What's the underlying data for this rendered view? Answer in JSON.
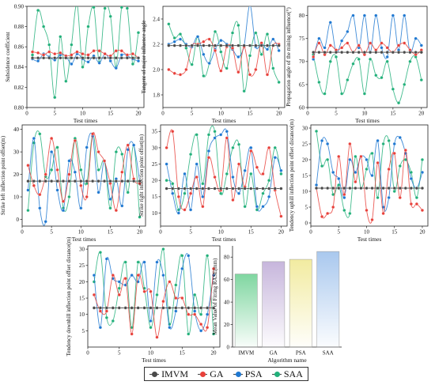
{
  "legend": {
    "items": [
      {
        "label": "IMVM",
        "color": "#4a4a4a"
      },
      {
        "label": "GA",
        "color": "#e8403a"
      },
      {
        "label": "PSA",
        "color": "#1f78d1"
      },
      {
        "label": "SAA",
        "color": "#22b07a"
      }
    ]
  },
  "chart_data": [
    {
      "type": "line",
      "xlabel": "Test times",
      "ylabel": "Subsidence coefficient",
      "xlim": [
        0,
        21
      ],
      "ylim": [
        0.8,
        0.9
      ],
      "xticks": [
        0,
        5,
        10,
        15,
        20
      ],
      "yticks": [
        0.8,
        0.82,
        0.84,
        0.86,
        0.88,
        0.9
      ],
      "x": [
        1,
        2,
        3,
        4,
        5,
        6,
        7,
        8,
        9,
        10,
        11,
        12,
        13,
        14,
        15,
        16,
        17,
        18,
        19,
        20
      ],
      "series": [
        {
          "name": "IMVM",
          "values": [
            0.849,
            0.849,
            0.849,
            0.849,
            0.849,
            0.849,
            0.849,
            0.849,
            0.849,
            0.849,
            0.849,
            0.849,
            0.849,
            0.849,
            0.849,
            0.849,
            0.849,
            0.849,
            0.849,
            0.849
          ]
        },
        {
          "name": "GA",
          "values": [
            0.855,
            0.854,
            0.852,
            0.855,
            0.853,
            0.854,
            0.851,
            0.852,
            0.855,
            0.853,
            0.852,
            0.856,
            0.856,
            0.853,
            0.851,
            0.856,
            0.856,
            0.852,
            0.853,
            0.849
          ]
        },
        {
          "name": "PSA",
          "values": [
            0.848,
            0.846,
            0.853,
            0.85,
            0.847,
            0.852,
            0.851,
            0.843,
            0.853,
            0.848,
            0.845,
            0.851,
            0.844,
            0.853,
            0.846,
            0.839,
            0.852,
            0.851,
            0.848,
            0.846
          ]
        },
        {
          "name": "SAA",
          "values": [
            0.852,
            0.896,
            0.88,
            0.862,
            0.81,
            0.87,
            0.826,
            0.862,
            0.902,
            0.84,
            0.88,
            0.899,
            0.845,
            0.898,
            0.89,
            0.84,
            0.899,
            0.898,
            0.843,
            0.874
          ]
        }
      ]
    },
    {
      "type": "line",
      "xlabel": "Test times",
      "ylabel": "Tangent of major influence angle",
      "xlim": [
        0,
        21
      ],
      "ylim": [
        1.7,
        2.5
      ],
      "xticks": [
        0,
        5,
        10,
        15,
        20
      ],
      "yticks": [
        1.8,
        2.0,
        2.2,
        2.4
      ],
      "x": [
        1,
        2,
        3,
        4,
        5,
        6,
        7,
        8,
        9,
        10,
        11,
        12,
        13,
        14,
        15,
        16,
        17,
        18,
        19,
        20
      ],
      "series": [
        {
          "name": "IMVM",
          "values": [
            2.19,
            2.19,
            2.19,
            2.19,
            2.19,
            2.19,
            2.19,
            2.19,
            2.19,
            2.19,
            2.19,
            2.19,
            2.19,
            2.19,
            2.19,
            2.19,
            2.19,
            2.19,
            2.19,
            2.19
          ]
        },
        {
          "name": "GA",
          "values": [
            2.0,
            1.97,
            1.96,
            2.0,
            2.19,
            2.2,
            2.22,
            2.24,
            2.15,
            1.99,
            2.18,
            2.17,
            1.98,
            2.18,
            1.96,
            2.0,
            2.21,
            1.96,
            2.19,
            2.2
          ]
        },
        {
          "name": "PSA",
          "values": [
            2.2,
            2.22,
            2.24,
            2.2,
            2.18,
            2.26,
            2.12,
            2.05,
            2.16,
            2.23,
            2.2,
            2.16,
            2.1,
            2.19,
            2.51,
            2.18,
            2.21,
            2.16,
            2.24,
            2.15
          ]
        },
        {
          "name": "SAA",
          "values": [
            2.36,
            2.25,
            2.28,
            2.17,
            2.04,
            2.26,
            1.95,
            2.05,
            2.3,
            2.14,
            2.01,
            2.29,
            2.35,
            1.83,
            2.11,
            2.29,
            2.12,
            2.28,
            2.01,
            1.9
          ]
        }
      ]
    },
    {
      "type": "line",
      "xlabel": "Test times",
      "ylabel": "Propagation angle of the mining influence(°)",
      "xlim": [
        0,
        21
      ],
      "ylim": [
        60,
        82
      ],
      "xticks": [
        0,
        5,
        10,
        15,
        20
      ],
      "yticks": [
        60,
        65,
        70,
        75,
        80
      ],
      "x": [
        1,
        2,
        3,
        4,
        5,
        6,
        7,
        8,
        9,
        10,
        11,
        12,
        13,
        14,
        15,
        16,
        17,
        18,
        19,
        20
      ],
      "series": [
        {
          "name": "IMVM",
          "values": [
            72,
            72,
            72,
            72,
            72,
            72,
            72,
            72,
            72,
            72,
            72,
            72,
            72,
            72,
            72,
            72,
            72,
            72,
            72,
            72
          ]
        },
        {
          "name": "GA",
          "values": [
            71.0,
            74.0,
            71.5,
            73.5,
            72.5,
            73.0,
            74.0,
            72.0,
            73.5,
            71.5,
            74.0,
            72.5,
            74.0,
            73.0,
            72.0,
            73.5,
            74.0,
            72.5,
            71.5,
            72.5
          ]
        },
        {
          "name": "PSA",
          "values": [
            70.5,
            75.0,
            73.0,
            78.5,
            72.0,
            74.5,
            76.5,
            80.0,
            73.0,
            80.0,
            72.0,
            80.0,
            73.0,
            71.0,
            80.0,
            72.5,
            80.0,
            72.0,
            75.0,
            73.5
          ]
        },
        {
          "name": "SAA",
          "values": [
            71.5,
            65.5,
            63.0,
            70.0,
            71.0,
            63.0,
            66.0,
            69.5,
            70.5,
            63.0,
            70.5,
            67.0,
            66.5,
            70.0,
            64.0,
            61.0,
            65.0,
            70.0,
            71.0,
            66.0
          ]
        }
      ]
    },
    {
      "type": "line",
      "xlabel": "Test times",
      "ylabel": "Strike left inflection point offset(m)",
      "xlim": [
        0,
        21
      ],
      "ylim": [
        -3,
        42
      ],
      "xticks": [
        0,
        5,
        10,
        15,
        20
      ],
      "yticks": [
        0,
        10,
        20,
        30,
        40
      ],
      "x": [
        1,
        2,
        3,
        4,
        5,
        6,
        7,
        8,
        9,
        10,
        11,
        12,
        13,
        14,
        15,
        16,
        17,
        18,
        19,
        20
      ],
      "series": [
        {
          "name": "IMVM",
          "values": [
            17,
            17,
            17,
            17,
            17,
            17,
            17,
            17,
            17,
            17,
            17,
            17,
            17,
            17,
            17,
            17,
            17,
            17,
            17,
            17
          ]
        },
        {
          "name": "GA",
          "values": [
            24,
            15,
            11,
            20,
            36,
            22,
            8,
            20,
            35,
            15,
            10,
            38,
            30,
            26,
            16,
            4,
            21,
            33,
            18,
            16
          ]
        },
        {
          "name": "PSA",
          "values": [
            13,
            36,
            5,
            -1,
            30,
            13,
            4,
            26,
            21,
            5,
            32,
            37,
            12,
            26,
            9,
            18,
            6,
            31,
            33,
            17
          ]
        },
        {
          "name": "SAA",
          "values": [
            4,
            34,
            38,
            19,
            22,
            32,
            5,
            10,
            36,
            22,
            16,
            38,
            22,
            26,
            5,
            30,
            29,
            12,
            33,
            1
          ]
        }
      ]
    },
    {
      "type": "line",
      "xlabel": "Test times",
      "ylabel": "Strike right inflection point offset(m)",
      "xlim": [
        0,
        21
      ],
      "ylim": [
        6,
        37
      ],
      "xticks": [
        0,
        5,
        10,
        15,
        20
      ],
      "yticks": [
        10,
        15,
        20,
        25,
        30,
        35
      ],
      "x": [
        1,
        2,
        3,
        4,
        5,
        6,
        7,
        8,
        9,
        10,
        11,
        12,
        13,
        14,
        15,
        16,
        17,
        18,
        19,
        20
      ],
      "series": [
        {
          "name": "IMVM",
          "values": [
            17.5,
            17.5,
            17.5,
            17.5,
            17.5,
            17.5,
            17.5,
            17.5,
            17.5,
            17.5,
            17.5,
            17.5,
            17.5,
            17.5,
            17.5,
            17.5,
            17.5,
            17.5,
            17.5,
            17.5
          ]
        },
        {
          "name": "GA",
          "values": [
            30,
            35,
            15,
            11,
            16,
            21,
            12,
            27,
            21,
            17,
            33,
            14,
            25,
            18,
            29,
            24,
            22,
            30,
            17,
            9
          ]
        },
        {
          "name": "PSA",
          "values": [
            25,
            16,
            10,
            22,
            11,
            25,
            15,
            29,
            33,
            34,
            35,
            21,
            16,
            23,
            30,
            12,
            12,
            15,
            27,
            23
          ]
        },
        {
          "name": "SAA",
          "values": [
            20,
            19,
            11,
            16,
            28,
            34,
            19,
            34,
            35,
            16,
            22,
            30,
            31,
            12,
            22,
            11,
            16,
            20,
            30,
            22
          ]
        }
      ]
    },
    {
      "type": "line",
      "xlabel": "Test times",
      "ylabel": "Tendency uphill inflection point offset distance(m)",
      "xlim": [
        0,
        21
      ],
      "ylim": [
        -1,
        31
      ],
      "xticks": [
        0,
        5,
        10,
        15,
        20
      ],
      "yticks": [
        0,
        5,
        10,
        15,
        20,
        25,
        30
      ],
      "x": [
        1,
        2,
        3,
        4,
        5,
        6,
        7,
        8,
        9,
        10,
        11,
        12,
        13,
        14,
        15,
        16,
        17,
        18,
        19,
        20
      ],
      "series": [
        {
          "name": "IMVM",
          "values": [
            11,
            11,
            11,
            11,
            11,
            11,
            11,
            11,
            11,
            11,
            11,
            11,
            11,
            11,
            11,
            11,
            11,
            11,
            11,
            11
          ]
        },
        {
          "name": "GA",
          "values": [
            11,
            2,
            3,
            5,
            21,
            9,
            25,
            13,
            21,
            4,
            1,
            19,
            3,
            17,
            22,
            8,
            23,
            6,
            6,
            4
          ]
        },
        {
          "name": "PSA",
          "values": [
            12,
            26,
            25,
            16,
            14,
            8,
            20,
            16,
            21,
            20,
            15,
            26,
            5,
            8,
            25,
            27,
            22,
            14,
            11,
            16
          ]
        },
        {
          "name": "SAA",
          "values": [
            29,
            18,
            20,
            9,
            12,
            4,
            3,
            21,
            11,
            17,
            22,
            8,
            25,
            26,
            10,
            18,
            20,
            16,
            8,
            20
          ]
        }
      ]
    },
    {
      "type": "line",
      "xlabel": "Test times",
      "ylabel": "Tendency downhill inflection point offset distance(m)",
      "xlim": [
        0,
        21
      ],
      "ylim": [
        0,
        31
      ],
      "xticks": [
        0,
        5,
        10,
        15,
        20
      ],
      "yticks": [
        5,
        10,
        15,
        20,
        25,
        30
      ],
      "x": [
        1,
        2,
        3,
        4,
        5,
        6,
        7,
        8,
        9,
        10,
        11,
        12,
        13,
        14,
        15,
        16,
        17,
        18,
        19,
        20
      ],
      "series": [
        {
          "name": "IMVM",
          "values": [
            12,
            12,
            12,
            12,
            12,
            12,
            12,
            12,
            12,
            12,
            12,
            12,
            12,
            12,
            12,
            12,
            12,
            12,
            12,
            12
          ]
        },
        {
          "name": "GA",
          "values": [
            16,
            11,
            11,
            22,
            16,
            21,
            4,
            22,
            17,
            17,
            3,
            14,
            20,
            15,
            15,
            10,
            10,
            7,
            6,
            24
          ]
        },
        {
          "name": "PSA",
          "values": [
            22,
            6,
            27,
            21,
            20,
            19,
            22,
            20,
            26,
            8,
            26,
            22,
            6,
            11,
            24,
            28,
            11,
            5,
            10,
            22
          ]
        },
        {
          "name": "SAA",
          "values": [
            20,
            29,
            9,
            8,
            18,
            26,
            6,
            26,
            18,
            6,
            16,
            30,
            7,
            19,
            28,
            4,
            16,
            10,
            28,
            4
          ]
        }
      ]
    },
    {
      "type": "bar",
      "xlabel": "Algorithm name",
      "ylabel": "Mean Value of Fitting RASE(mm)",
      "categories": [
        "IMVM",
        "GA",
        "PSA",
        "SAA"
      ],
      "values": [
        65,
        76,
        78,
        85
      ],
      "colors": [
        "#7fd6a0",
        "#c7b6dc",
        "#f2eba0",
        "#a9c8ee"
      ],
      "ylim": [
        0,
        90
      ],
      "yticks": [
        0,
        20,
        40,
        60,
        80
      ]
    }
  ]
}
